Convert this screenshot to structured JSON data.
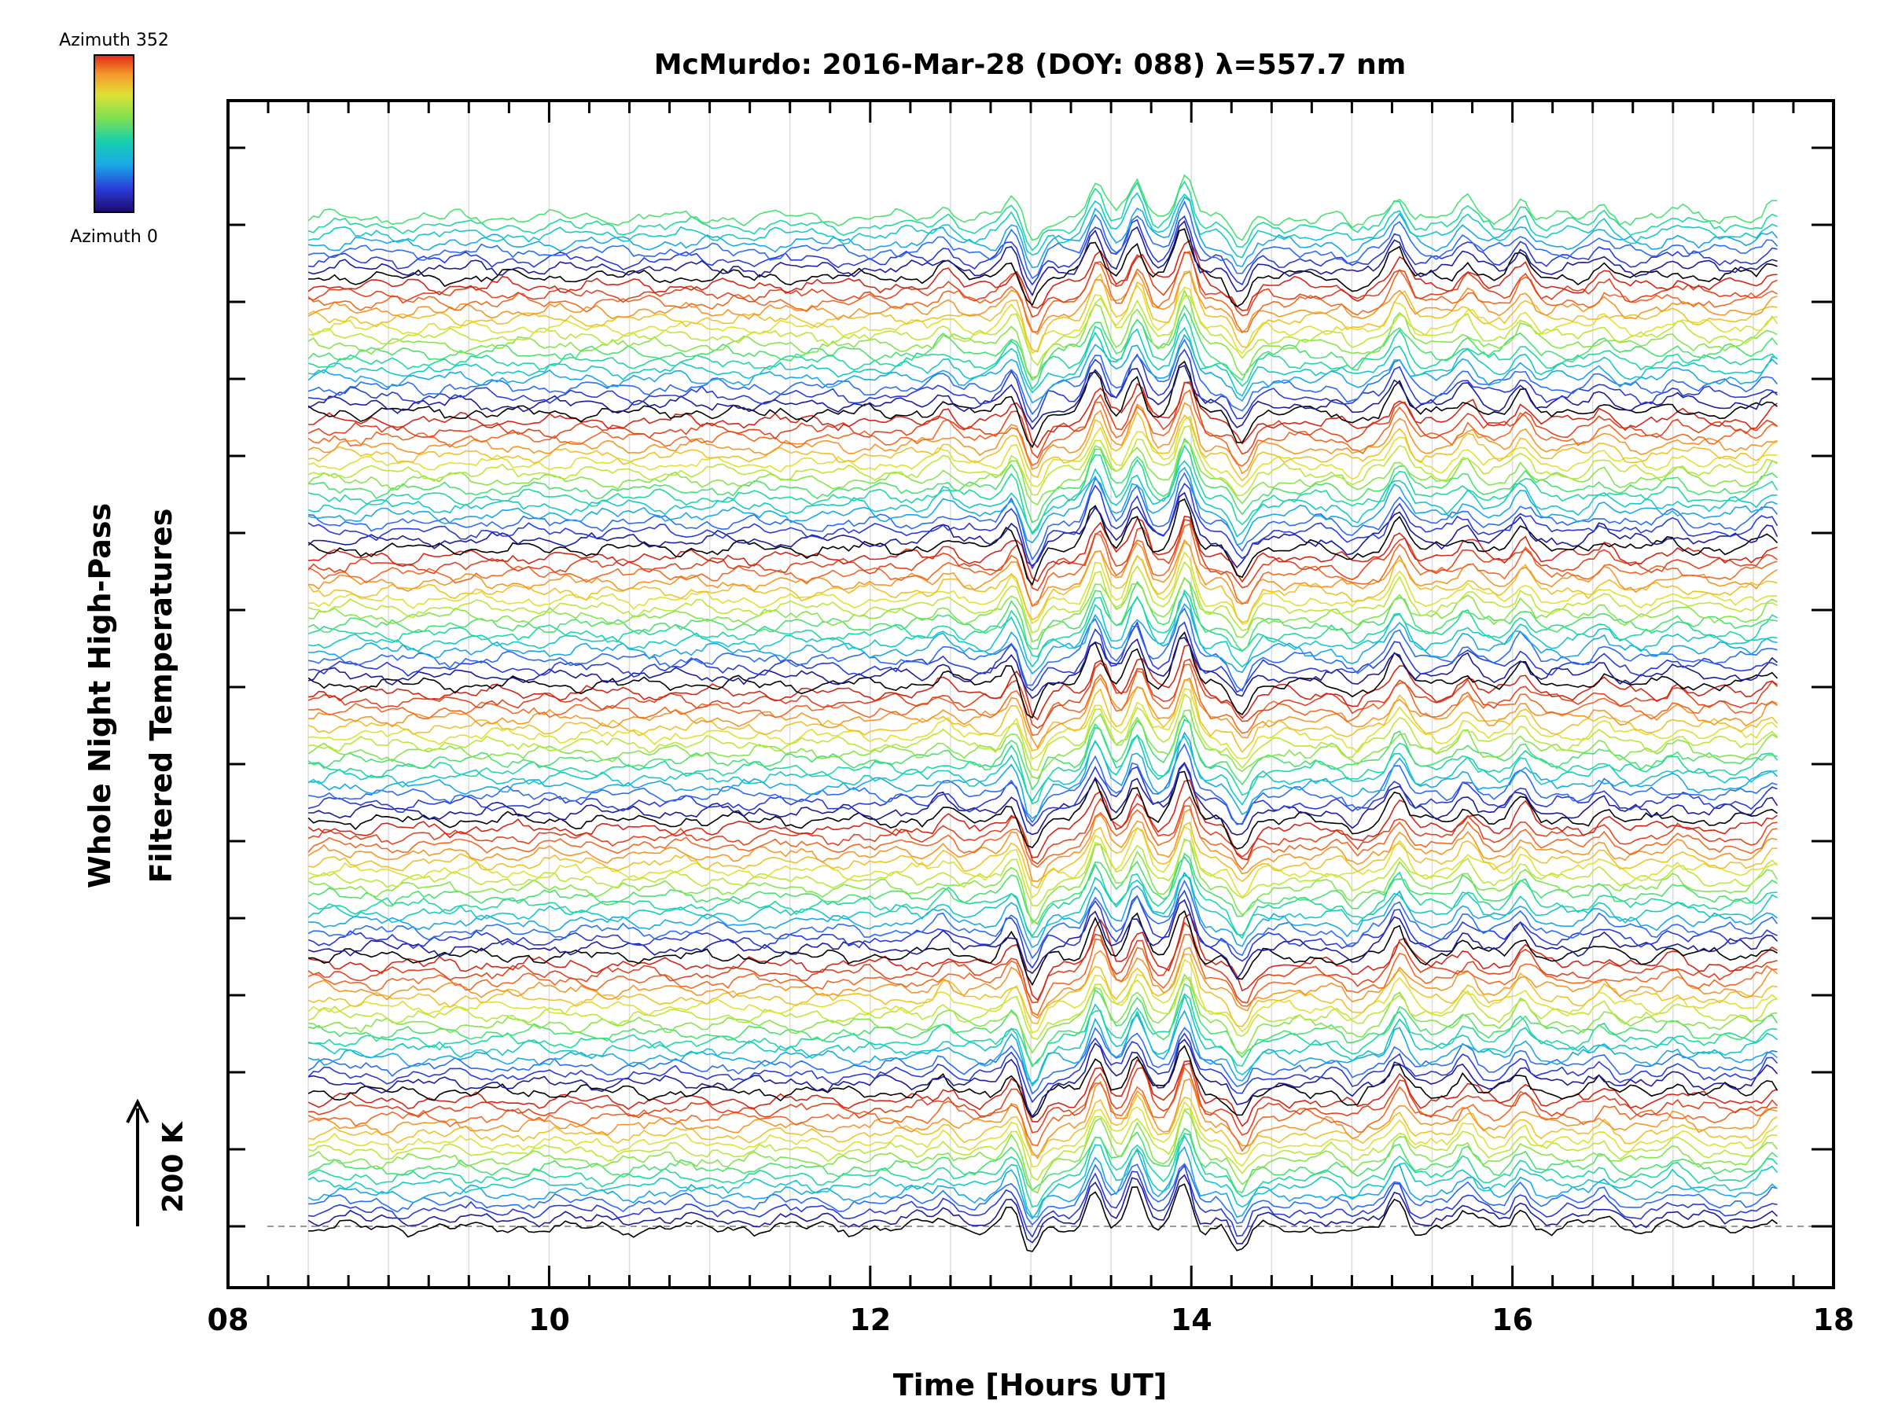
{
  "chart_data": {
    "type": "line",
    "title": "McMurdo: 2016-Mar-28 (DOY: 088) λ=557.7 nm",
    "xlabel": "Time [Hours UT]",
    "ylabel_line1": "Whole Night High-Pass",
    "ylabel_line2": "Filtered Temperatures",
    "xlim": [
      8,
      18
    ],
    "x_ticks": [
      "08",
      "10",
      "12",
      "14",
      "16",
      "18"
    ],
    "data_start_hour": 8.5,
    "data_end_hour": 17.65,
    "n_traces": 120,
    "n_azimuths": 16,
    "azimuth_range": [
      0,
      352
    ],
    "vertical_scale": "200 K",
    "colorbar": {
      "top_label": "Azimuth 352",
      "bottom_label": "Azimuth 0"
    },
    "colormap": [
      "#000000",
      "#1c1c9c",
      "#2a3cd8",
      "#2c6ef0",
      "#1aa8e8",
      "#16c8c8",
      "#20d8a0",
      "#4ce070",
      "#86e44c",
      "#bce63a",
      "#e0e034",
      "#f0c02c",
      "#f4962a",
      "#f06a26",
      "#e04620",
      "#d02818"
    ],
    "features": [
      {
        "hour": 12.45,
        "amplitude": 0.7
      },
      {
        "hour": 12.88,
        "amplitude": 1.3
      },
      {
        "hour": 13.0,
        "amplitude": -1.8
      },
      {
        "hour": 13.4,
        "amplitude": 2.4
      },
      {
        "hour": 13.65,
        "amplitude": 2.3
      },
      {
        "hour": 13.95,
        "amplitude": 3.0
      },
      {
        "hour": 14.3,
        "amplitude": -1.6
      },
      {
        "hour": 15.0,
        "amplitude": -0.6
      },
      {
        "hour": 15.28,
        "amplitude": 1.7
      },
      {
        "hour": 15.7,
        "amplitude": 1.0
      },
      {
        "hour": 16.05,
        "amplitude": 1.2
      },
      {
        "hour": 16.55,
        "amplitude": 0.7
      },
      {
        "hour": 17.0,
        "amplitude": 0.5
      },
      {
        "hour": 17.6,
        "amplitude": 0.8
      }
    ]
  }
}
